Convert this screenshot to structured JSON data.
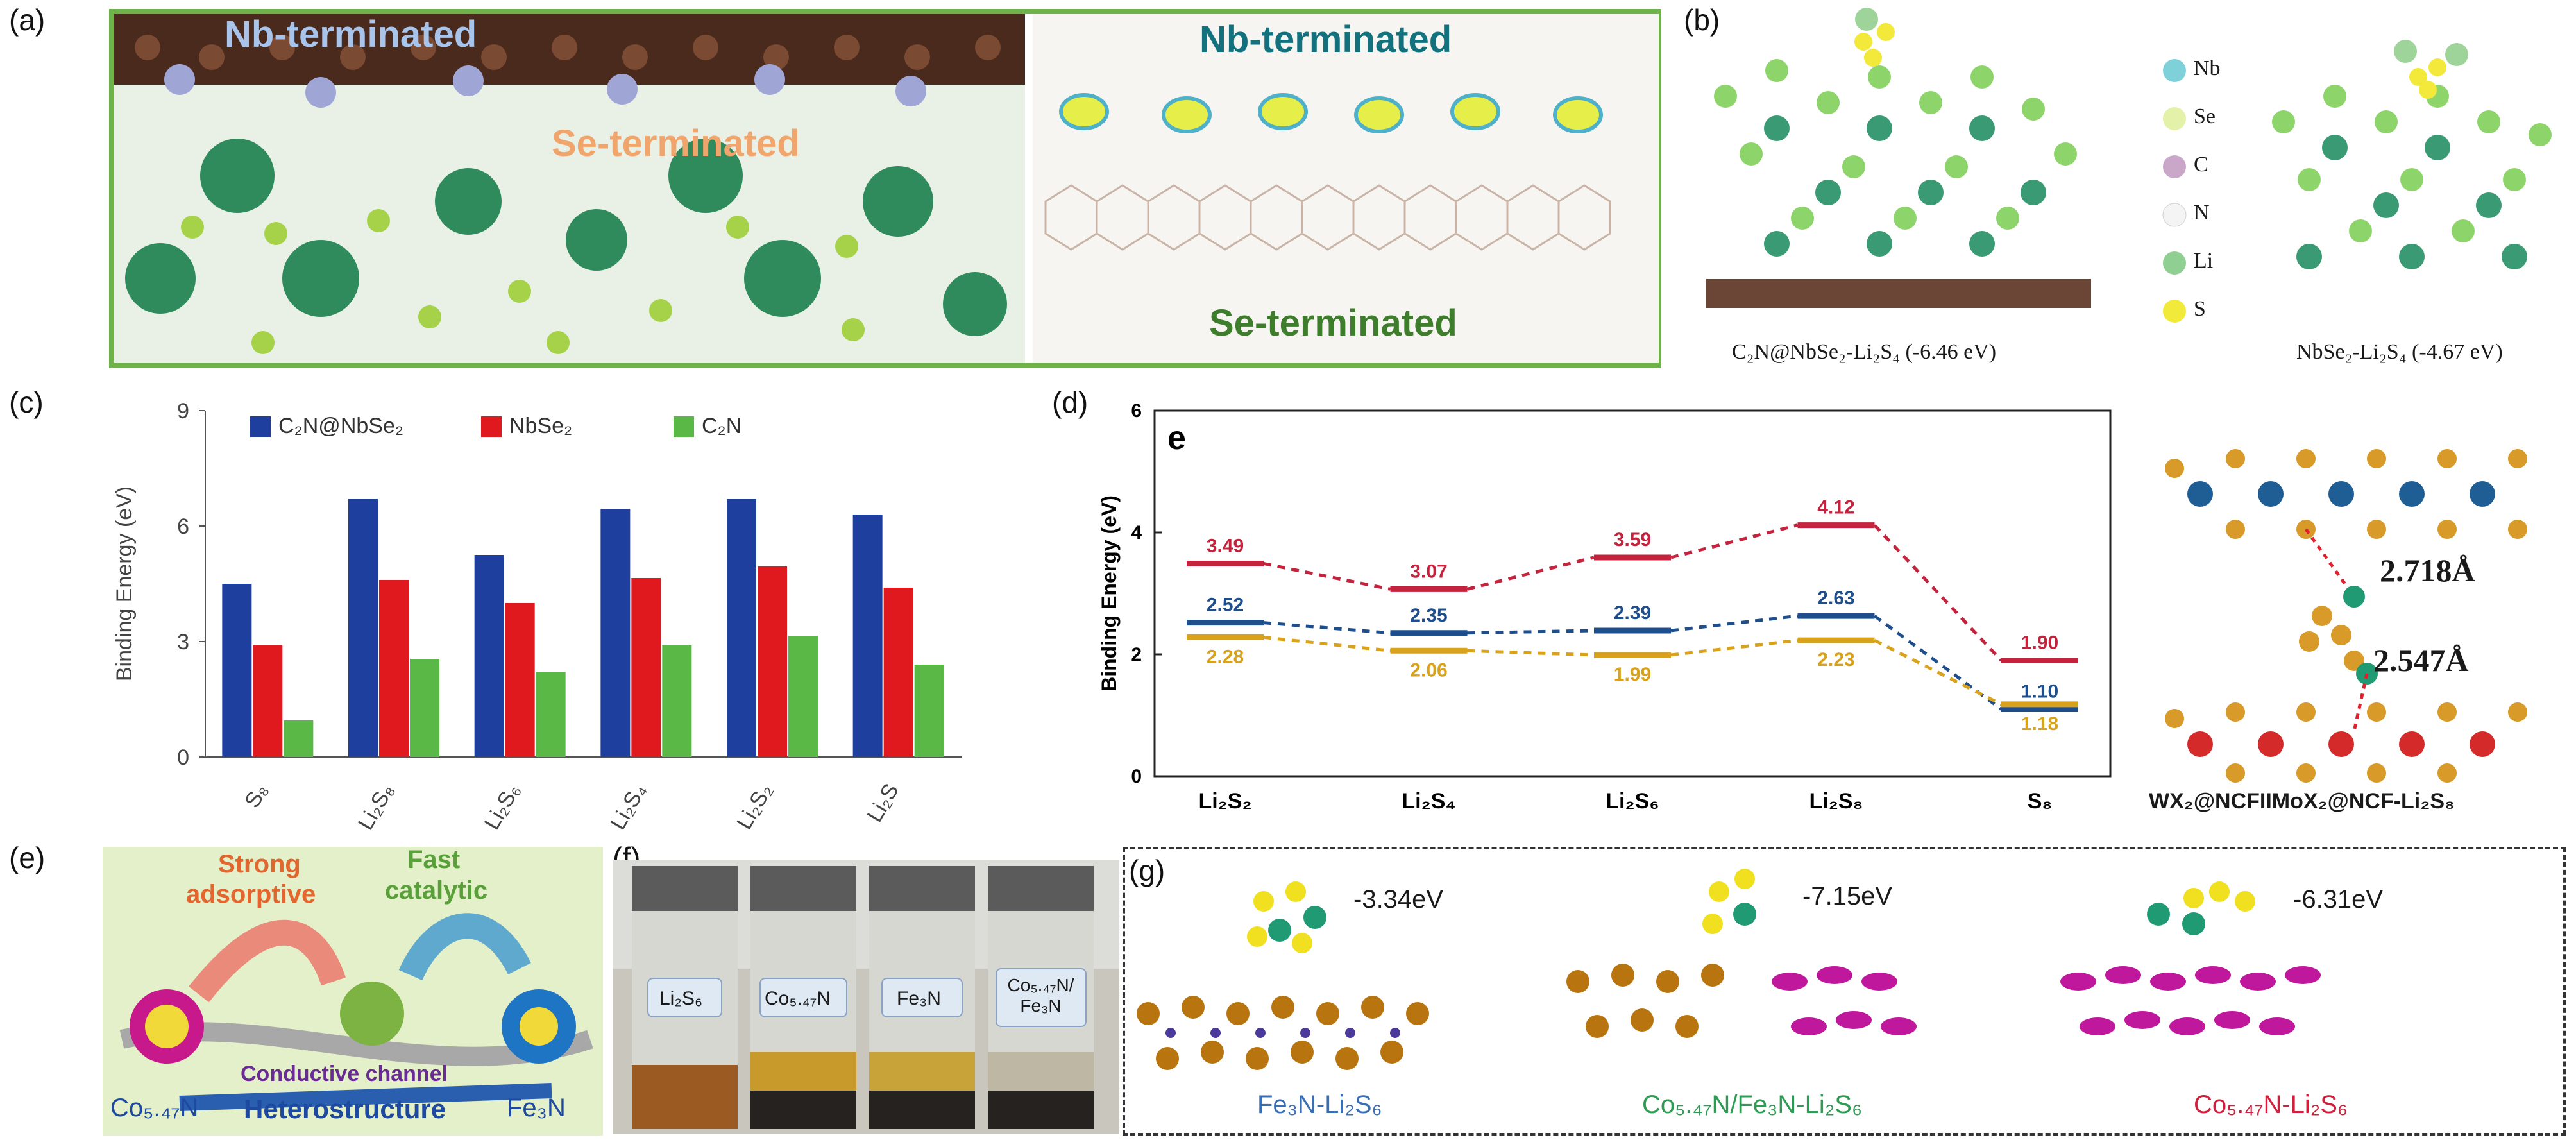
{
  "figure": {
    "panel_labels": {
      "a": "(a)",
      "b": "(b)",
      "c": "(c)",
      "d": "(d)",
      "e": "(e)",
      "f": "(f)",
      "g": "(g)"
    }
  },
  "panel_a": {
    "labels": {
      "nb_left": "Nb-terminated",
      "se_left": "Se-terminated",
      "nb_right": "Nb-terminated",
      "se_right": "Se-terminated"
    }
  },
  "panel_b": {
    "legend": [
      "Nb",
      "Se",
      "C",
      "N",
      "Li",
      "S"
    ],
    "legend_colors": [
      "#7fd1d9",
      "#e3f2a8",
      "#caa7c9",
      "#f4f4f4",
      "#8fcf92",
      "#f2ea3a"
    ],
    "caption_left": "C₂N@NbSe₂-Li₂S₄ (-6.46 eV)",
    "caption_right": "NbSe₂-Li₂S₄ (-4.67 eV)"
  },
  "panel_c": {
    "chart_data": {
      "type": "bar",
      "categories": [
        "S₈",
        "Li₂S₈",
        "Li₂S₆",
        "Li₂S₄",
        "Li₂S₂",
        "Li₂S"
      ],
      "series": [
        {
          "name": "C₂N@NbSe₂",
          "color": "#1f3f9e",
          "values": [
            4.5,
            6.7,
            5.25,
            6.45,
            6.7,
            6.3
          ]
        },
        {
          "name": "NbSe₂",
          "color": "#e0191f",
          "values": [
            2.9,
            4.6,
            4.0,
            4.65,
            4.95,
            4.4
          ]
        },
        {
          "name": "C₂N",
          "color": "#5ab946",
          "values": [
            0.95,
            2.55,
            2.2,
            2.9,
            3.15,
            2.4
          ]
        }
      ],
      "ylabel": "Binding Energy (eV)",
      "ylim": [
        0,
        9
      ],
      "yticks": [
        "0",
        "3",
        "6",
        "9"
      ]
    }
  },
  "panel_d": {
    "inner_label": "e",
    "chart_data": {
      "type": "line",
      "categories": [
        "Li₂S₂",
        "Li₂S₄",
        "Li₂S₆",
        "Li₂S₈",
        "S₈"
      ],
      "series": [
        {
          "color": "#c3233d",
          "values": [
            3.49,
            3.07,
            3.59,
            4.12,
            1.9
          ]
        },
        {
          "color": "#1f4e8c",
          "values": [
            2.52,
            2.35,
            2.39,
            2.63,
            1.1
          ]
        },
        {
          "color": "#d8a21c",
          "values": [
            2.28,
            2.06,
            1.99,
            2.23,
            1.18
          ]
        }
      ],
      "ylabel": "Binding Energy (eV)",
      "ylim": [
        0,
        6
      ],
      "yticks": [
        "0",
        "2",
        "4",
        "6"
      ]
    },
    "value_labels": [
      [
        "3.49",
        "3.07",
        "3.59",
        "4.12",
        "1.90"
      ],
      [
        "2.52",
        "2.35",
        "2.39",
        "2.63",
        "1.10"
      ],
      [
        "2.28",
        "2.06",
        "1.99",
        "2.23",
        "1.18"
      ]
    ],
    "structure_bond_1": "2.718Å",
    "structure_bond_2": "2.547Å",
    "structure_caption": "WX₂@NCFIIMoX₂@NCF-Li₂S₈"
  },
  "panel_e": {
    "strong": "Strong",
    "adsorptive": "adsorptive",
    "fast": "Fast",
    "catalytic": "catalytic",
    "conductive": "Conductive channel",
    "left_material": "Co₅.₄₇N",
    "heterostructure": "Heterostructure",
    "right_material": "Fe₃N"
  },
  "panel_f": {
    "vials": [
      "Li₂S₆",
      "Co₅.₄₇N",
      "Fe₃N",
      "Co₅.₄₇N/ Fe₃N"
    ]
  },
  "panel_g": {
    "energies": [
      "-3.34eV",
      "-7.15eV",
      "-6.31eV"
    ],
    "captions": [
      "Fe₃N-Li₂S₆",
      "Co₅.₄₇N/Fe₃N-Li₂S₆",
      "Co₅.₄₇N-Li₂S₆"
    ],
    "caption_colors": [
      "#3a6fb5",
      "#2e9b55",
      "#d01f3c"
    ]
  }
}
